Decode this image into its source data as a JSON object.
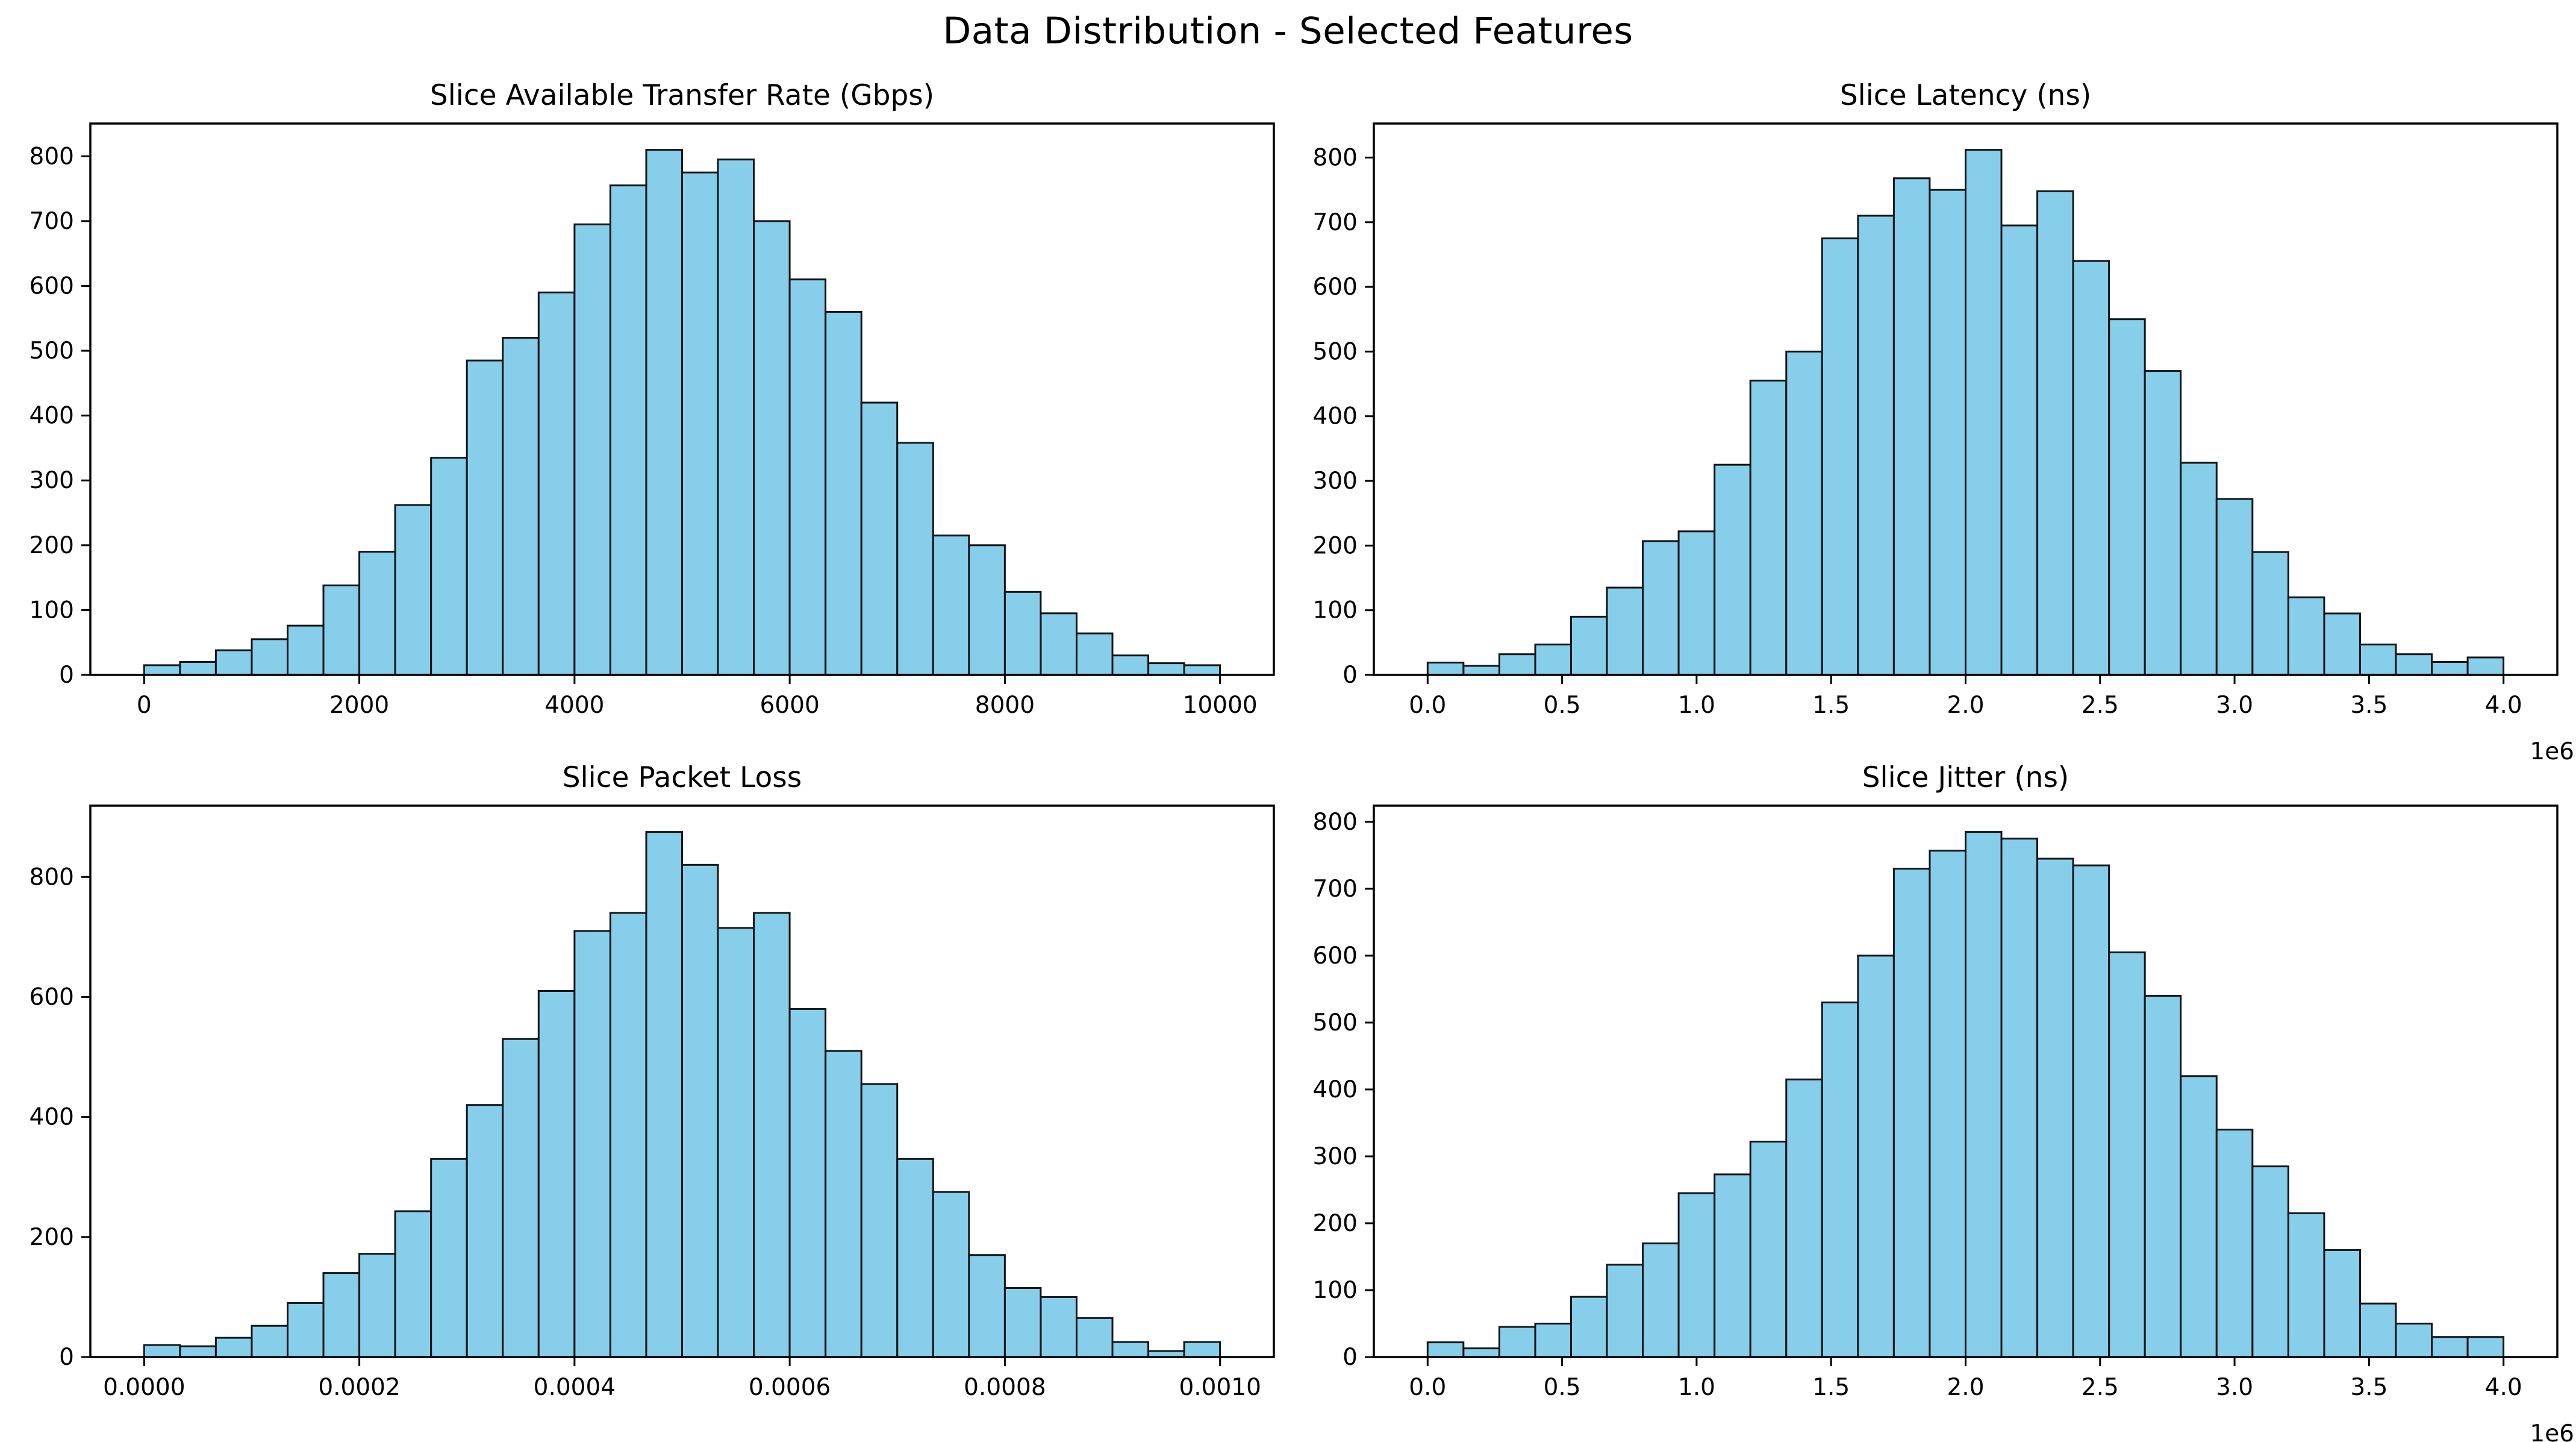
{
  "figure": {
    "suptitle": "Data Distribution - Selected Features",
    "background": "#ffffff",
    "bar_fill": "#87CEEB",
    "bar_edge": "#151515",
    "spine_color": "#000000",
    "text_color": "#000000"
  },
  "chart_data": [
    {
      "type": "bar",
      "title": "Slice Available Transfer Rate (Gbps)",
      "xlabel": "",
      "ylabel": "",
      "grid": false,
      "legend": "none",
      "bin_start": 0,
      "bin_end": 10000,
      "values": [
        15,
        20,
        38,
        55,
        76,
        138,
        190,
        262,
        335,
        485,
        520,
        590,
        695,
        755,
        810,
        775,
        795,
        700,
        610,
        560,
        420,
        358,
        215,
        200,
        128,
        95,
        64,
        30,
        18,
        15
      ],
      "xlim": [
        -500,
        10500
      ],
      "ylim": [
        0,
        850.5
      ],
      "x_tick_values": [
        0,
        2000,
        4000,
        6000,
        8000,
        10000
      ],
      "x_tick_labels": [
        "0",
        "2000",
        "4000",
        "6000",
        "8000",
        "10000"
      ],
      "y_tick_values": [
        0,
        100,
        200,
        300,
        400,
        500,
        600,
        700,
        800
      ],
      "y_tick_labels": [
        "0",
        "100",
        "200",
        "300",
        "400",
        "500",
        "600",
        "700",
        "800"
      ],
      "x_offset_label": ""
    },
    {
      "type": "bar",
      "title": "Slice Latency (ns)",
      "xlabel": "",
      "ylabel": "",
      "grid": false,
      "legend": "none",
      "bin_start": 0,
      "bin_end": 4000000,
      "values": [
        19,
        14,
        32,
        47,
        90,
        135,
        207,
        222,
        325,
        455,
        500,
        675,
        710,
        768,
        750,
        812,
        695,
        748,
        640,
        550,
        470,
        328,
        272,
        190,
        120,
        95,
        47,
        32,
        20,
        27
      ],
      "xlim": [
        -200000,
        4200000
      ],
      "ylim": [
        0,
        852.6
      ],
      "x_tick_values": [
        0,
        500000,
        1000000,
        1500000,
        2000000,
        2500000,
        3000000,
        3500000,
        4000000
      ],
      "x_tick_labels": [
        "0.0",
        "0.5",
        "1.0",
        "1.5",
        "2.0",
        "2.5",
        "3.0",
        "3.5",
        "4.0"
      ],
      "y_tick_values": [
        0,
        100,
        200,
        300,
        400,
        500,
        600,
        700,
        800
      ],
      "y_tick_labels": [
        "0",
        "100",
        "200",
        "300",
        "400",
        "500",
        "600",
        "700",
        "800"
      ],
      "x_offset_label": "1e6"
    },
    {
      "type": "bar",
      "title": "Slice Packet Loss",
      "xlabel": "",
      "ylabel": "",
      "grid": false,
      "legend": "none",
      "bin_start": 0,
      "bin_end": 0.001,
      "values": [
        20,
        18,
        32,
        52,
        90,
        140,
        172,
        243,
        330,
        420,
        530,
        610,
        710,
        740,
        875,
        820,
        715,
        740,
        580,
        510,
        455,
        330,
        275,
        170,
        115,
        100,
        65,
        25,
        10,
        25
      ],
      "xlim": [
        -5e-05,
        0.00105
      ],
      "ylim": [
        0,
        918.75
      ],
      "x_tick_values": [
        0,
        0.0002,
        0.0004,
        0.0006,
        0.0008,
        0.001
      ],
      "x_tick_labels": [
        "0.0000",
        "0.0002",
        "0.0004",
        "0.0006",
        "0.0008",
        "0.0010"
      ],
      "y_tick_values": [
        0,
        200,
        400,
        600,
        800
      ],
      "y_tick_labels": [
        "0",
        "200",
        "400",
        "600",
        "800"
      ],
      "x_offset_label": ""
    },
    {
      "type": "bar",
      "title": "Slice Jitter (ns)",
      "xlabel": "",
      "ylabel": "",
      "grid": false,
      "legend": "none",
      "bin_start": 0,
      "bin_end": 4000000,
      "values": [
        22,
        13,
        45,
        50,
        90,
        138,
        170,
        245,
        273,
        322,
        415,
        530,
        600,
        730,
        757,
        785,
        775,
        745,
        735,
        605,
        540,
        420,
        340,
        285,
        215,
        160,
        80,
        50,
        30,
        30
      ],
      "xlim": [
        -200000,
        4200000
      ],
      "ylim": [
        0,
        824.25
      ],
      "x_tick_values": [
        0,
        500000,
        1000000,
        1500000,
        2000000,
        2500000,
        3000000,
        3500000,
        4000000
      ],
      "x_tick_labels": [
        "0.0",
        "0.5",
        "1.0",
        "1.5",
        "2.0",
        "2.5",
        "3.0",
        "3.5",
        "4.0"
      ],
      "y_tick_values": [
        0,
        100,
        200,
        300,
        400,
        500,
        600,
        700,
        800
      ],
      "y_tick_labels": [
        "0",
        "100",
        "200",
        "300",
        "400",
        "500",
        "600",
        "700",
        "800"
      ],
      "x_offset_label": "1e6"
    }
  ]
}
